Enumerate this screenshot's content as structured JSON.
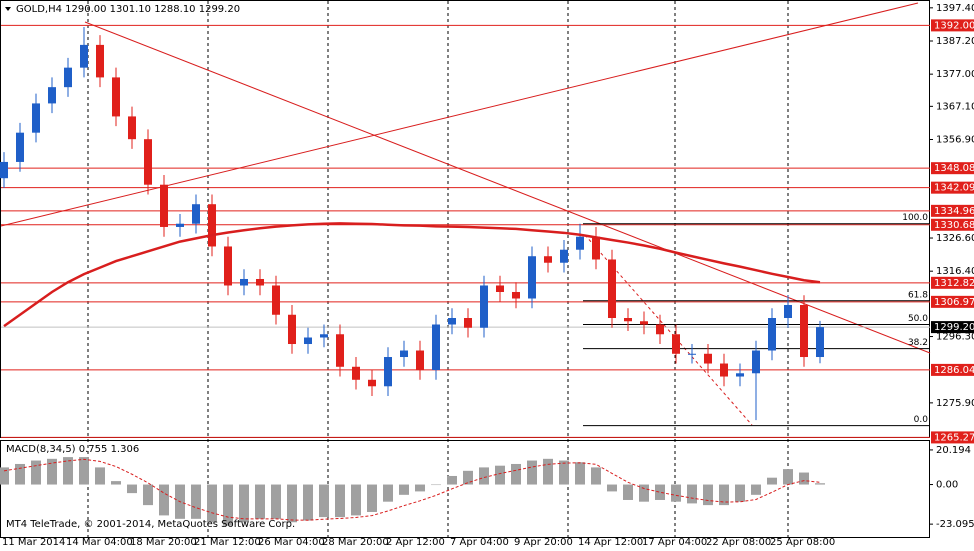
{
  "header": "GOLD,H4  1290.00 1301.10 1288.10 1299.20",
  "copyright": "MT4 TeleTrade, © 2001-2014, MetaQuotes Software Corp.",
  "chart_data": [
    {
      "type": "candlestick",
      "categories": [
        "11 Mar 2014",
        null,
        null,
        null,
        "14 Mar 04:00",
        null,
        null,
        null,
        "18 Mar 20:00",
        null,
        null,
        null,
        "21 Mar 12:00",
        null,
        null,
        null,
        "26 Mar 04:00",
        null,
        null,
        null,
        "28 Mar 20:00",
        null,
        null,
        null,
        "2 Apr 12:00",
        null,
        null,
        null,
        "7 Apr 04:00",
        null,
        null,
        null,
        "9 Apr 20:00",
        null,
        null,
        null,
        "14 Apr 12:00",
        null,
        null,
        null,
        "17 Apr 04:00",
        null,
        null,
        null,
        "22 Apr 08:00",
        null,
        null,
        null,
        "25 Apr 08:00",
        null,
        null,
        null
      ],
      "open": [
        1345,
        1350,
        1359,
        1368,
        1373,
        1379,
        1386,
        1376,
        1364,
        1357,
        1343,
        1330,
        1331,
        1337,
        1324,
        1312,
        1314,
        1312,
        1303,
        1294,
        1296,
        1297,
        1287,
        1283,
        1281,
        1290,
        1292,
        1286,
        1300,
        1302,
        1299,
        1312,
        1310,
        1308,
        1321,
        1319,
        1323,
        1327,
        1320,
        1302,
        1301,
        1300,
        1297,
        1291,
        1291,
        1288,
        1284,
        1285,
        1292,
        1302,
        1306,
        1290
      ],
      "high": [
        1353,
        1362,
        1371,
        1376,
        1382,
        1391.5,
        1389,
        1379,
        1367,
        1360,
        1346,
        1334,
        1340,
        1340,
        1327,
        1317,
        1317,
        1315,
        1306,
        1299,
        1300,
        1300,
        1290,
        1286,
        1293,
        1295,
        1295,
        1303,
        1305,
        1305,
        1315,
        1315,
        1313,
        1324,
        1324,
        1326,
        1331,
        1330,
        1323,
        1305,
        1304,
        1303,
        1300,
        1294,
        1294,
        1291,
        1288,
        1295,
        1305,
        1309,
        1309,
        1301.1
      ],
      "low": [
        1342,
        1347,
        1356,
        1365,
        1370,
        1376,
        1373,
        1361,
        1354,
        1340,
        1327,
        1327,
        1328,
        1321,
        1309,
        1309,
        1309,
        1300,
        1291,
        1291,
        1293,
        1284,
        1280,
        1278,
        1278,
        1287,
        1283,
        1283,
        1297,
        1296,
        1296,
        1307,
        1305,
        1305,
        1316,
        1316,
        1320,
        1317,
        1299,
        1298,
        1297,
        1294,
        1288,
        1288,
        1285,
        1281,
        1281,
        1270.6,
        1289,
        1299,
        1287,
        1288.1
      ],
      "close": [
        1350,
        1359,
        1368,
        1373,
        1379,
        1386,
        1376,
        1364,
        1357,
        1343,
        1330,
        1331,
        1337,
        1324,
        1312,
        1314,
        1312,
        1303,
        1294,
        1296,
        1297,
        1287,
        1283,
        1281,
        1290,
        1292,
        1286,
        1300,
        1302,
        1299,
        1312,
        1310,
        1308,
        1321,
        1319,
        1323,
        1327,
        1320,
        1302,
        1301,
        1300,
        1297,
        1291,
        1291,
        1288,
        1284,
        1285,
        1292,
        1302,
        1306,
        1290,
        1299.2
      ],
      "up_color": "#1f5fc8",
      "down_color": "#e0201b",
      "ma": {
        "color": "#d81e1e",
        "values": [
          1299.5,
          1303,
          1306.5,
          1310,
          1313,
          1315.5,
          1317.5,
          1319.5,
          1321,
          1322.5,
          1324,
          1325.5,
          1326.5,
          1327.5,
          1328.3,
          1329,
          1329.6,
          1330.1,
          1330.5,
          1330.8,
          1331,
          1331.1,
          1331,
          1330.9,
          1330.7,
          1330.5,
          1330.4,
          1330.2,
          1330.1,
          1330,
          1329.8,
          1329.6,
          1329.4,
          1329,
          1328.6,
          1328.2,
          1327.6,
          1326.8,
          1326,
          1325.2,
          1324.3,
          1323.3,
          1322.1,
          1321,
          1319.9,
          1318.8,
          1317.8,
          1316.7,
          1315.6,
          1314.6,
          1313.6,
          1313
        ]
      },
      "ylim": [
        1265.4,
        1399.5
      ],
      "yticks": [
        {
          "value": 1397.4,
          "label": "1397.40"
        },
        {
          "value": 1387.2,
          "label": "1387.20"
        },
        {
          "value": 1377,
          "label": "1377.00"
        },
        {
          "value": 1367.1,
          "label": "1367.10"
        },
        {
          "value": 1356.9,
          "label": "1356.90"
        },
        {
          "value": 1326.6,
          "label": "1326.60"
        },
        {
          "value": 1316.4,
          "label": "1316.40"
        },
        {
          "value": 1296.3,
          "label": "1296.30"
        },
        {
          "value": 1275.9,
          "label": "1275.90"
        }
      ],
      "levels": [
        {
          "value": 1392,
          "label": "1392.00"
        },
        {
          "value": 1348.08,
          "label": "1348.08"
        },
        {
          "value": 1342.09,
          "label": "1342.09"
        },
        {
          "value": 1334.96,
          "label": "1334.96"
        },
        {
          "value": 1330.68,
          "label": "1330.68"
        },
        {
          "value": 1312.82,
          "label": "1312.82"
        },
        {
          "value": 1306.97,
          "label": "1306.97"
        },
        {
          "value": 1286.04,
          "label": "1286.04"
        },
        {
          "value": 1265.27,
          "label": "1265.27"
        }
      ],
      "level_color": "#e0201b",
      "current": {
        "value": 1299.2,
        "label": "1299.20"
      },
      "fib": [
        {
          "value": 1331,
          "label": "100.0"
        },
        {
          "value": 1307.3,
          "label": "61.8"
        },
        {
          "value": 1300,
          "label": "50.0"
        },
        {
          "value": 1292.6,
          "label": "38.2"
        },
        {
          "value": 1268.9,
          "label": "0.0"
        }
      ]
    },
    {
      "type": "macd",
      "title": "MACD(8,34,5) 0.755 1.306",
      "values": [
        10,
        12,
        14,
        15,
        16,
        16,
        10,
        2,
        -5,
        -12,
        -18,
        -20,
        -20,
        -22,
        -24,
        -22,
        -20,
        -20,
        -22,
        -21,
        -19,
        -19,
        -18,
        -16,
        -10,
        -6,
        -4,
        0,
        5,
        8,
        10,
        11,
        12,
        14,
        15,
        14,
        13,
        10,
        -4,
        -9,
        -10,
        -9,
        -10,
        -11,
        -12,
        -12,
        -10,
        -6,
        4,
        9,
        7,
        0.755
      ],
      "signal": [
        8,
        9.5,
        11,
        12.5,
        13.8,
        14.7,
        13.5,
        10.5,
        6,
        1,
        -5,
        -10,
        -13.5,
        -16.5,
        -19,
        -20,
        -20,
        -20,
        -20.7,
        -20.8,
        -20.2,
        -19.8,
        -19.2,
        -18.1,
        -15.4,
        -12.3,
        -9.5,
        -6.3,
        -2.5,
        1.1,
        4.1,
        6.4,
        8.3,
        10.2,
        11.8,
        12.5,
        12.7,
        11.8,
        6.5,
        1.3,
        -2.3,
        -4.5,
        -6.3,
        -7.9,
        -9.3,
        -10.2,
        -10.1,
        -8.7,
        -4.5,
        0,
        2.3,
        1.306
      ],
      "color": "#a0a0a0",
      "signal_color": "#d81e1e",
      "ylim": [
        -30.6,
        25.4
      ],
      "yticks": [
        20.194,
        {
          "value": 0,
          "label": "0.00"
        },
        -23.095
      ]
    }
  ]
}
